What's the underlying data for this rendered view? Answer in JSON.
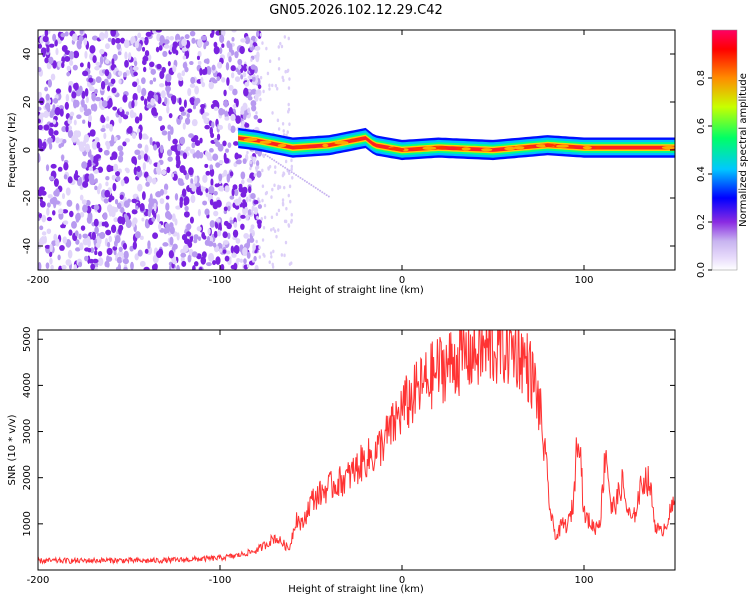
{
  "figure_title": "GN05.2026.102.12.29.C42",
  "chart_data": [
    {
      "type": "heatmap",
      "title": "GN05.2026.102.12.29.C42",
      "xlabel": "Height of straight line (km)",
      "ylabel": "Frequency (Hz)",
      "xlim": [
        -200,
        150
      ],
      "ylim": [
        -50,
        50
      ],
      "xticks": [
        -200,
        -100,
        0,
        100
      ],
      "xtick_labels": [
        "-200",
        "-100",
        "0",
        "100"
      ],
      "yticks": [
        -40,
        -20,
        0,
        20,
        40
      ],
      "ytick_labels": [
        "-40",
        "-20",
        "0",
        "20",
        "40"
      ],
      "colorbar": {
        "label": "Normalized spectral amplitude",
        "range": [
          0,
          1
        ],
        "ticks": [
          0.0,
          0.2,
          0.4,
          0.6,
          0.8
        ],
        "tick_labels": [
          "0.0",
          "0.2",
          "0.4",
          "0.6",
          "0.8"
        ],
        "colormap": [
          "#ffffff",
          "#c8b4f0",
          "#8a2be2",
          "#0000ff",
          "#00c8ff",
          "#00ff66",
          "#c8ff00",
          "#ff8c00",
          "#ff0000",
          "#ff0064"
        ]
      },
      "regions": [
        {
          "name": "noise",
          "x_range": [
            -200,
            -78
          ],
          "freq_range": [
            -50,
            50
          ],
          "amplitude": 0.08
        },
        {
          "name": "signal-band",
          "x_range": [
            -90,
            150
          ],
          "center_freq": 1.5,
          "band_halfwidth": 3,
          "amplitude": 0.95
        }
      ],
      "signal_track": [
        [
          -90,
          5
        ],
        [
          -80,
          4
        ],
        [
          -60,
          1
        ],
        [
          -40,
          2
        ],
        [
          -20,
          5
        ],
        [
          -15,
          2
        ],
        [
          0,
          0
        ],
        [
          20,
          1
        ],
        [
          50,
          0
        ],
        [
          80,
          2
        ],
        [
          100,
          1
        ],
        [
          150,
          1
        ]
      ]
    },
    {
      "type": "line",
      "xlabel": "Height of straight line (km)",
      "ylabel": "SNR (10 * v/v)",
      "xlim": [
        -200,
        150
      ],
      "ylim": [
        0,
        5200
      ],
      "xticks": [
        -200,
        -100,
        0,
        100
      ],
      "xtick_labels": [
        "-200",
        "-100",
        "0",
        "100"
      ],
      "yticks": [
        1000,
        2000,
        3000,
        4000,
        5000
      ],
      "ytick_labels": [
        "1000",
        "2000",
        "3000",
        "4000",
        "5000"
      ],
      "series": [
        {
          "name": "SNR",
          "color": "#ff3333",
          "x": [
            -200,
            -180,
            -160,
            -140,
            -120,
            -100,
            -90,
            -80,
            -75,
            -70,
            -66,
            -62,
            -58,
            -55,
            -50,
            -45,
            -40,
            -35,
            -30,
            -25,
            -20,
            -15,
            -10,
            -5,
            0,
            5,
            10,
            15,
            20,
            25,
            30,
            35,
            40,
            45,
            50,
            55,
            60,
            65,
            70,
            73,
            76,
            79,
            82,
            85,
            88,
            91,
            94,
            97,
            100,
            103,
            106,
            109,
            112,
            115,
            118,
            121,
            124,
            127,
            130,
            133,
            136,
            139,
            142,
            145,
            148,
            150
          ],
          "y": [
            200,
            200,
            210,
            200,
            220,
            260,
            320,
            420,
            550,
            700,
            600,
            450,
            1150,
            950,
            1500,
            1650,
            1800,
            1900,
            2000,
            2200,
            2400,
            2500,
            2800,
            3100,
            3500,
            3700,
            3950,
            4150,
            4350,
            4450,
            4550,
            4650,
            4700,
            4750,
            4800,
            4800,
            4820,
            4700,
            4350,
            4000,
            3400,
            2300,
            1100,
            700,
            1000,
            950,
            1400,
            3300,
            1200,
            1050,
            900,
            1100,
            2700,
            1300,
            1500,
            1900,
            1250,
            1050,
            1600,
            2000,
            1900,
            1000,
            800,
            1000,
            1300,
            1450
          ]
        }
      ]
    }
  ]
}
